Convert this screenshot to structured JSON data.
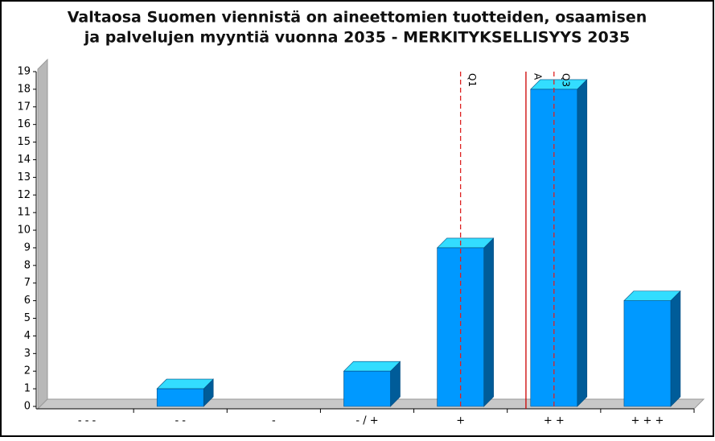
{
  "chart_data": {
    "type": "bar3d",
    "title": [
      "Valtaosa Suomen viennistä on aineettomien tuotteiden, osaamisen",
      "ja palvelujen myyntiä vuonna 2035 - MERKITYKSELLISYYS 2035"
    ],
    "categories": [
      "- - -",
      "- -",
      "-",
      "- / +",
      "+",
      "+ +",
      "+ + +"
    ],
    "values": [
      0,
      1,
      0,
      2,
      9,
      18,
      6
    ],
    "color": "#0099ff",
    "ylim": [
      0,
      19
    ],
    "yticks": [
      0,
      1,
      2,
      3,
      4,
      5,
      6,
      7,
      8,
      9,
      10,
      11,
      12,
      13,
      14,
      15,
      16,
      17,
      18,
      19
    ],
    "markers": [
      {
        "label": "Q1",
        "x": 4,
        "style": "dashed",
        "color": "#dd2222"
      },
      {
        "label": "A",
        "x": 4.7,
        "style": "solid",
        "color": "#cc0000"
      },
      {
        "label": "Q3",
        "x": 5,
        "style": "dashed",
        "color": "#dd2222"
      }
    ]
  }
}
